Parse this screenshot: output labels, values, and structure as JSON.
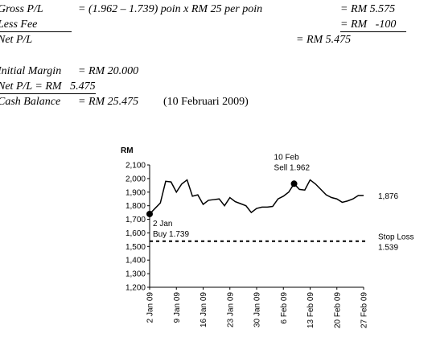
{
  "calculation": [
    {
      "label": "Gross P/L",
      "formula": "= (1.962 – 1.739) poin x RM 25 per poin",
      "result": "= RM 5.575"
    },
    {
      "label": "Less Fee",
      "result": "= RM   -100"
    },
    {
      "label": "Net P/L",
      "result": "= RM 5.475"
    }
  ],
  "balance": [
    {
      "label": "Initial Margin",
      "value": "= RM 20.000"
    },
    {
      "label": "Net P/L = RM   5.475"
    },
    {
      "label": "Cash Balance",
      "value": "= RM 25.475",
      "note": "(10 Februari 2009)"
    }
  ],
  "chart_data": {
    "type": "line",
    "y_label": "RM",
    "color": "#000000",
    "categories": [
      "2 Jan 09",
      null,
      null,
      null,
      null,
      "9 Jan 09",
      null,
      null,
      null,
      null,
      "16 Jan 09",
      null,
      null,
      null,
      null,
      "23 Jan 09",
      null,
      null,
      null,
      null,
      "30 Jan 09",
      null,
      null,
      null,
      null,
      "6 Feb 09",
      null,
      null,
      null,
      null,
      "13 Feb 09",
      null,
      null,
      null,
      null,
      "20 Feb 09",
      null,
      null,
      null,
      null,
      "27 Feb 09"
    ],
    "values": [
      1739,
      1780,
      1820,
      1980,
      1975,
      1900,
      1960,
      1990,
      1870,
      1880,
      1810,
      1840,
      1845,
      1850,
      1800,
      1860,
      1830,
      1815,
      1800,
      1750,
      1780,
      1790,
      1790,
      1795,
      1850,
      1870,
      1900,
      1962,
      1920,
      1915,
      1990,
      1960,
      1920,
      1880,
      1860,
      1850,
      1825,
      1835,
      1850,
      1875,
      1876
    ],
    "last_value_label": "1,876",
    "ylim": [
      1200,
      2100
    ],
    "yticks": [
      {
        "value": 1200,
        "label": "1,200"
      },
      {
        "value": 1300,
        "label": "1,300"
      },
      {
        "value": 1400,
        "label": "1,400"
      },
      {
        "value": 1500,
        "label": "1,500"
      },
      {
        "value": 1600,
        "label": "1,600"
      },
      {
        "value": 1700,
        "label": "1,700"
      },
      {
        "value": 1800,
        "label": "1,800"
      },
      {
        "value": 1900,
        "label": "1,900"
      },
      {
        "value": 2000,
        "label": "2,000"
      },
      {
        "value": 2100,
        "label": "2,100"
      }
    ],
    "annotations": [
      {
        "index": 0,
        "lines": [
          "2 Jan",
          "Buy 1.739"
        ]
      },
      {
        "index": 27,
        "lines": [
          "10 Feb",
          "Sell 1.962"
        ]
      }
    ],
    "stop_loss": {
      "value": 1539,
      "lines": [
        "Stop Loss",
        "1.539"
      ]
    }
  }
}
